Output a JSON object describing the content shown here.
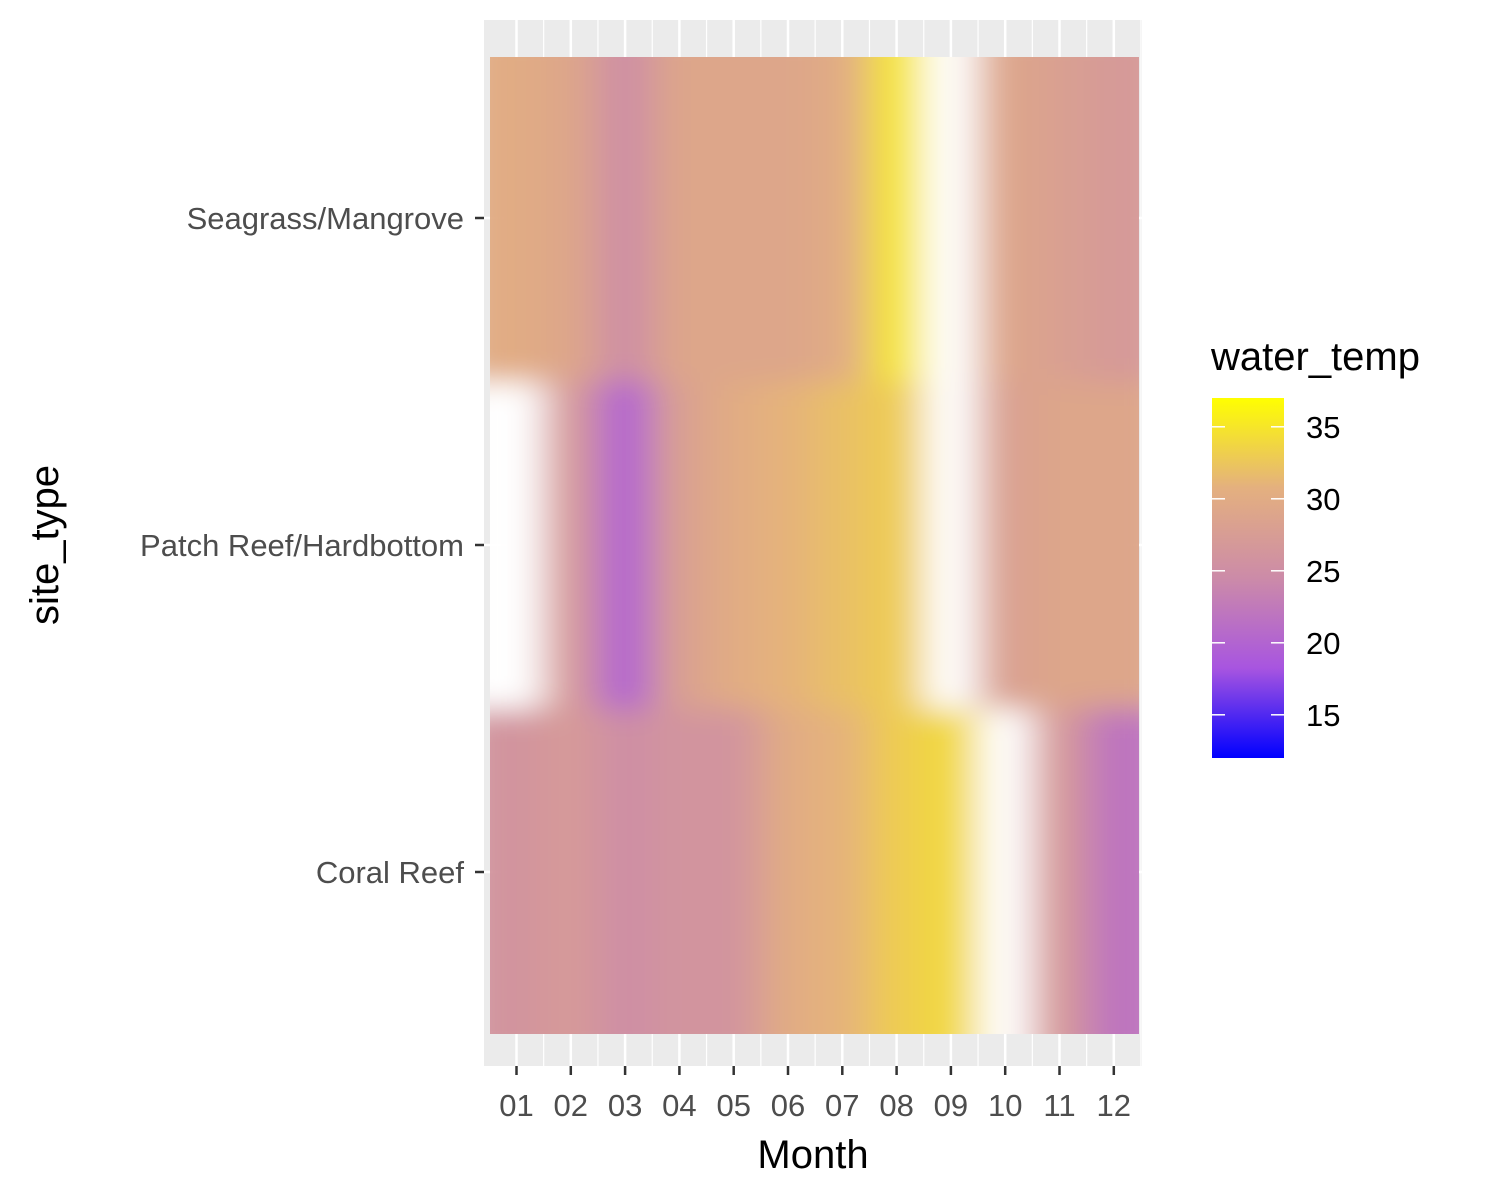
{
  "chart_data": {
    "type": "heatmap",
    "title": "",
    "xlabel": "Month",
    "ylabel": "site_type",
    "x_categories": [
      "01",
      "02",
      "03",
      "04",
      "05",
      "06",
      "07",
      "08",
      "09",
      "10",
      "11",
      "12"
    ],
    "y_categories": [
      "Coral Reef",
      "Patch Reef/Hardbottom",
      "Seagrass/Mangrove"
    ],
    "values": [
      [
        26,
        27,
        25,
        26,
        26,
        30,
        31,
        33,
        34,
        null,
        27,
        22
      ],
      [
        null,
        27,
        20,
        28,
        30,
        31,
        32,
        33,
        null,
        28,
        29,
        29
      ],
      [
        30,
        29,
        25,
        29,
        29,
        29,
        30,
        35,
        null,
        29,
        28,
        27
      ]
    ],
    "missing_value_color": "#ffffff",
    "legend": {
      "title": "water_temp",
      "position": "right",
      "breaks": [
        15,
        20,
        25,
        30,
        35
      ],
      "range": [
        12,
        37
      ],
      "gradient": [
        "#0000ff",
        "#a855e0",
        "#cc8ba8",
        "#e4b07f",
        "#ffff00"
      ]
    },
    "interpolated": true,
    "grid": true,
    "panel_background": "#ebebeb",
    "grid_color": "#ffffff"
  }
}
